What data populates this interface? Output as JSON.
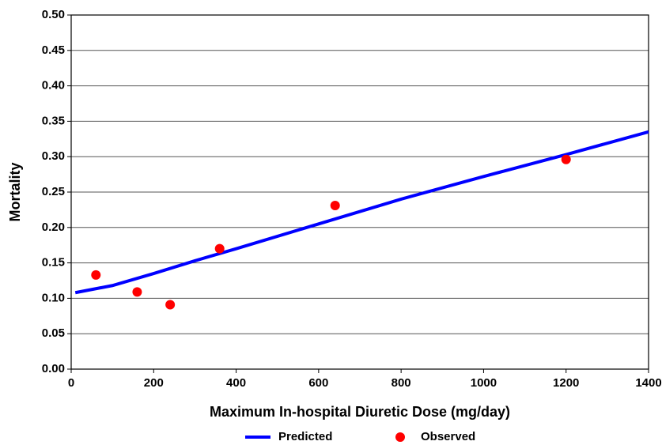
{
  "chart_data": {
    "type": "line",
    "xlabel": "Maximum In-hospital Diuretic Dose (mg/day)",
    "ylabel": "Mortality",
    "xlim": [
      0,
      1400
    ],
    "xticks": [
      0,
      200,
      400,
      600,
      800,
      1000,
      1200,
      1400
    ],
    "ylim": [
      0,
      0.5
    ],
    "yticks": [
      {
        "value": 0,
        "label": "0.00"
      },
      0.05,
      {
        "value": 0.1,
        "label": "0.10"
      },
      0.15,
      {
        "value": 0.2,
        "label": "0.20"
      },
      0.25,
      {
        "value": 0.3,
        "label": "0.30"
      },
      0.35,
      {
        "value": 0.4,
        "label": "0.40"
      },
      0.45,
      {
        "value": 0.5,
        "label": "0.50"
      }
    ],
    "grid": true,
    "legend": "bottom",
    "series": [
      {
        "name": "Predicted",
        "color": "#0000ff",
        "mode": "line",
        "x": [
          10,
          100,
          200,
          300,
          400,
          600,
          800,
          1000,
          1200,
          1400
        ],
        "values": [
          0.108,
          0.118,
          0.135,
          0.153,
          0.17,
          0.205,
          0.24,
          0.272,
          0.303,
          0.335
        ]
      },
      {
        "name": "Observed",
        "color": "#ff0000",
        "mode": "markers",
        "x": [
          60,
          160,
          240,
          360,
          640,
          1200
        ],
        "values": [
          0.133,
          0.109,
          0.091,
          0.17,
          0.231,
          0.296
        ]
      }
    ]
  }
}
